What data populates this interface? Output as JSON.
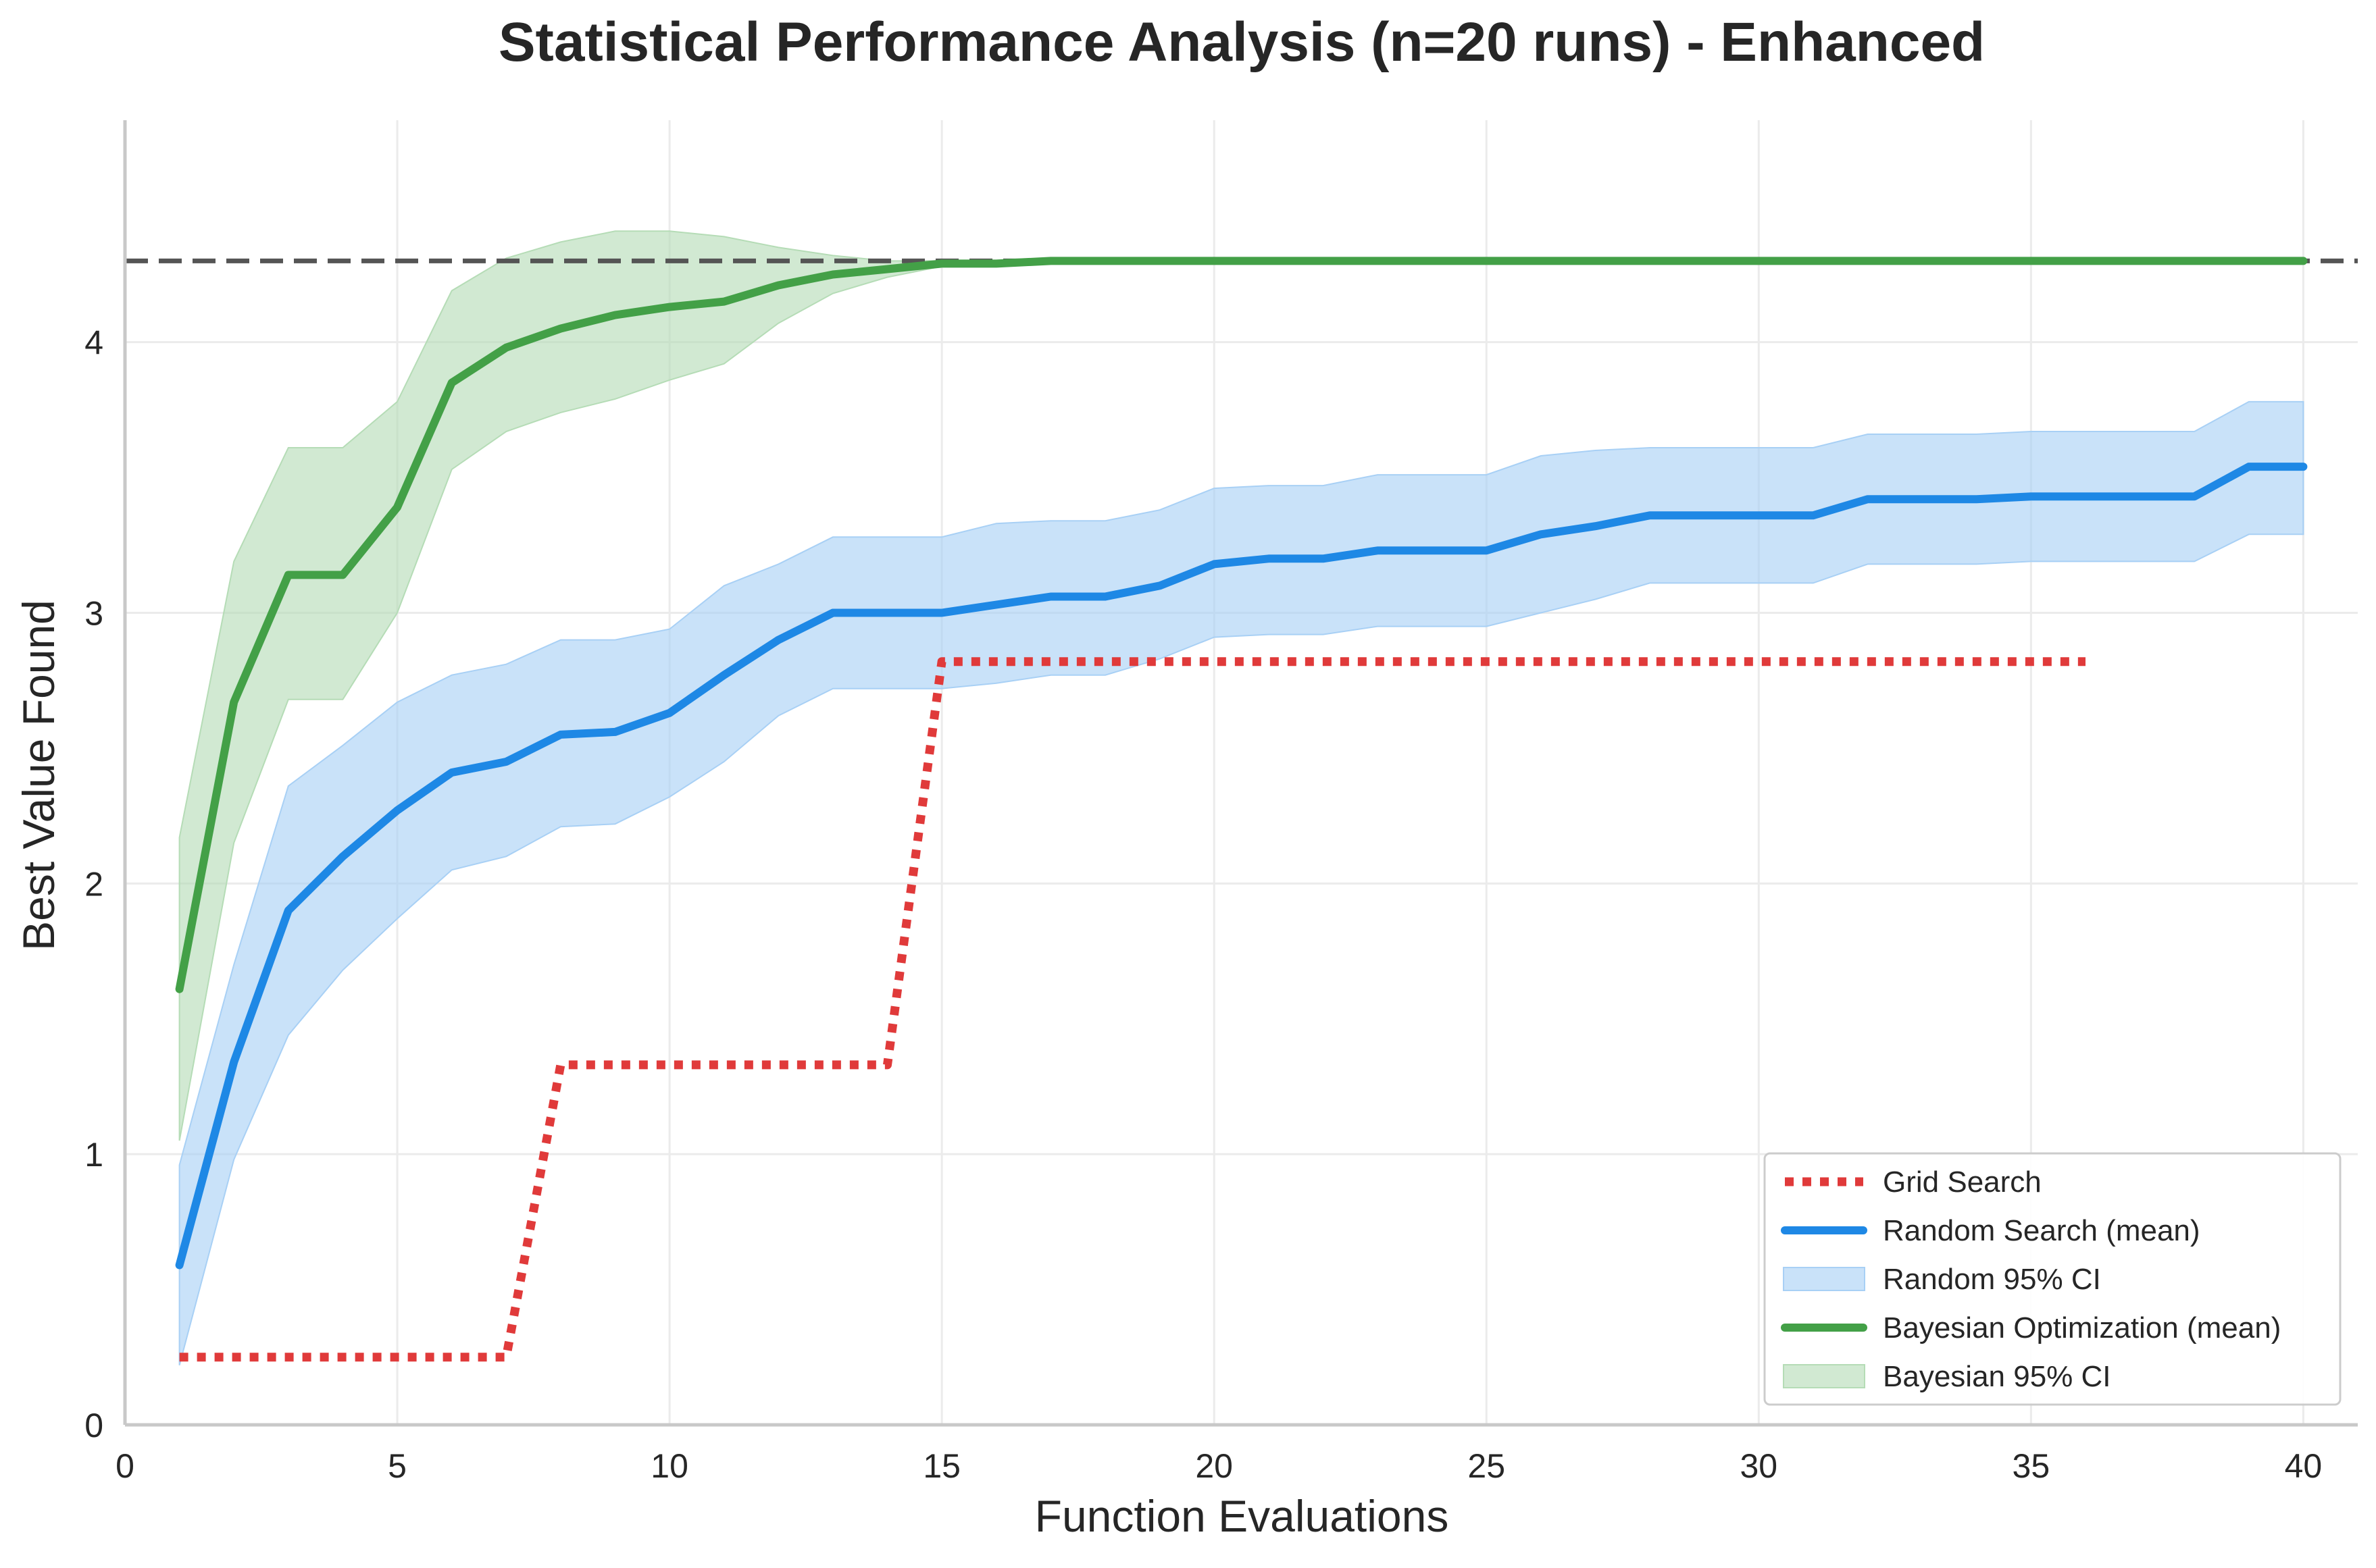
{
  "chart_data": {
    "type": "line",
    "title": "Statistical Performance Analysis (n=20 runs) - Enhanced",
    "xlabel": "Function Evaluations",
    "ylabel": "Best Value Found",
    "xlim": [
      0,
      41
    ],
    "ylim": [
      0,
      4.82
    ],
    "xticks": [
      0,
      5,
      10,
      15,
      20,
      25,
      30,
      35,
      40
    ],
    "yticks": [
      0,
      1,
      2,
      3,
      4
    ],
    "grid": true,
    "legend_position": "lower-right",
    "reference_line": {
      "y": 4.3,
      "style": "dashed",
      "color": "#555555"
    },
    "series": [
      {
        "name": "Grid Search",
        "style": "dotted",
        "color": "#e03a3a",
        "x": [
          1,
          7,
          8,
          14,
          15,
          36
        ],
        "values": [
          0.25,
          0.25,
          1.33,
          1.33,
          2.82,
          2.82
        ]
      },
      {
        "name": "Random Search (mean)",
        "style": "solid",
        "color": "#1e88e5",
        "x": [
          1,
          2,
          3,
          4,
          5,
          6,
          7,
          8,
          9,
          10,
          11,
          12,
          13,
          14,
          15,
          16,
          17,
          18,
          19,
          20,
          21,
          22,
          23,
          24,
          25,
          26,
          27,
          28,
          29,
          30,
          31,
          32,
          33,
          34,
          35,
          36,
          37,
          38,
          39,
          40
        ],
        "values": [
          0.59,
          1.34,
          1.9,
          2.1,
          2.27,
          2.41,
          2.45,
          2.55,
          2.56,
          2.63,
          2.77,
          2.9,
          3.0,
          3.0,
          3.0,
          3.03,
          3.06,
          3.06,
          3.1,
          3.18,
          3.2,
          3.2,
          3.23,
          3.23,
          3.23,
          3.29,
          3.32,
          3.36,
          3.36,
          3.36,
          3.36,
          3.42,
          3.42,
          3.42,
          3.43,
          3.43,
          3.43,
          3.43,
          3.54,
          3.54
        ]
      },
      {
        "name": "Random 95% CI",
        "type": "band",
        "color": "#a8d0f5",
        "x": [
          1,
          2,
          3,
          4,
          5,
          6,
          7,
          8,
          9,
          10,
          11,
          12,
          13,
          14,
          15,
          16,
          17,
          18,
          19,
          20,
          21,
          22,
          23,
          24,
          25,
          26,
          27,
          28,
          29,
          30,
          31,
          32,
          33,
          34,
          35,
          36,
          37,
          38,
          39,
          40
        ],
        "lower": [
          0.22,
          0.98,
          1.44,
          1.68,
          1.87,
          2.05,
          2.1,
          2.21,
          2.22,
          2.32,
          2.45,
          2.62,
          2.72,
          2.72,
          2.72,
          2.74,
          2.77,
          2.77,
          2.83,
          2.91,
          2.92,
          2.92,
          2.95,
          2.95,
          2.95,
          3.0,
          3.05,
          3.11,
          3.11,
          3.11,
          3.11,
          3.18,
          3.18,
          3.18,
          3.19,
          3.19,
          3.19,
          3.19,
          3.29,
          3.29
        ],
        "upper": [
          0.96,
          1.7,
          2.36,
          2.51,
          2.67,
          2.77,
          2.81,
          2.9,
          2.9,
          2.94,
          3.1,
          3.18,
          3.28,
          3.28,
          3.28,
          3.33,
          3.34,
          3.34,
          3.38,
          3.46,
          3.47,
          3.47,
          3.51,
          3.51,
          3.51,
          3.58,
          3.6,
          3.61,
          3.61,
          3.61,
          3.61,
          3.66,
          3.66,
          3.66,
          3.67,
          3.67,
          3.67,
          3.67,
          3.78,
          3.78
        ]
      },
      {
        "name": "Bayesian Optimization (mean)",
        "style": "solid",
        "color": "#43a047",
        "x": [
          1,
          2,
          3,
          4,
          5,
          6,
          7,
          8,
          9,
          10,
          11,
          12,
          13,
          14,
          15,
          16,
          17,
          18,
          19,
          20,
          21,
          22,
          23,
          24,
          25,
          26,
          27,
          28,
          29,
          30,
          31,
          32,
          33,
          34,
          35,
          36,
          37,
          38,
          39,
          40
        ],
        "values": [
          1.61,
          2.67,
          3.14,
          3.14,
          3.39,
          3.85,
          3.98,
          4.05,
          4.1,
          4.13,
          4.15,
          4.21,
          4.25,
          4.27,
          4.29,
          4.29,
          4.3,
          4.3,
          4.3,
          4.3,
          4.3,
          4.3,
          4.3,
          4.3,
          4.3,
          4.3,
          4.3,
          4.3,
          4.3,
          4.3,
          4.3,
          4.3,
          4.3,
          4.3,
          4.3,
          4.3,
          4.3,
          4.3,
          4.3,
          4.3
        ]
      },
      {
        "name": "Bayesian 95% CI",
        "type": "band",
        "color": "#b5dcb6",
        "x": [
          1,
          2,
          3,
          4,
          5,
          6,
          7,
          8,
          9,
          10,
          11,
          12,
          13,
          14,
          15,
          16,
          17,
          18,
          19,
          20,
          21,
          22,
          23,
          24,
          25,
          26,
          27,
          28,
          29,
          30,
          31,
          32,
          33,
          34,
          35,
          36,
          37,
          38,
          39,
          40
        ],
        "lower": [
          1.05,
          2.15,
          2.68,
          2.68,
          3.0,
          3.53,
          3.67,
          3.74,
          3.79,
          3.86,
          3.92,
          4.07,
          4.18,
          4.24,
          4.28,
          4.29,
          4.3,
          4.3,
          4.3,
          4.3,
          4.3,
          4.3,
          4.3,
          4.3,
          4.3,
          4.3,
          4.3,
          4.3,
          4.3,
          4.3,
          4.3,
          4.3,
          4.3,
          4.3,
          4.3,
          4.3,
          4.3,
          4.3,
          4.3,
          4.3
        ],
        "upper": [
          2.17,
          3.19,
          3.61,
          3.61,
          3.78,
          4.19,
          4.31,
          4.37,
          4.41,
          4.41,
          4.39,
          4.35,
          4.32,
          4.3,
          4.3,
          4.3,
          4.3,
          4.3,
          4.3,
          4.3,
          4.3,
          4.3,
          4.3,
          4.3,
          4.3,
          4.3,
          4.3,
          4.3,
          4.3,
          4.3,
          4.3,
          4.3,
          4.3,
          4.3,
          4.3,
          4.3,
          4.3,
          4.3,
          4.3,
          4.3
        ]
      }
    ],
    "legend_order": [
      0,
      1,
      2,
      3,
      4
    ]
  }
}
